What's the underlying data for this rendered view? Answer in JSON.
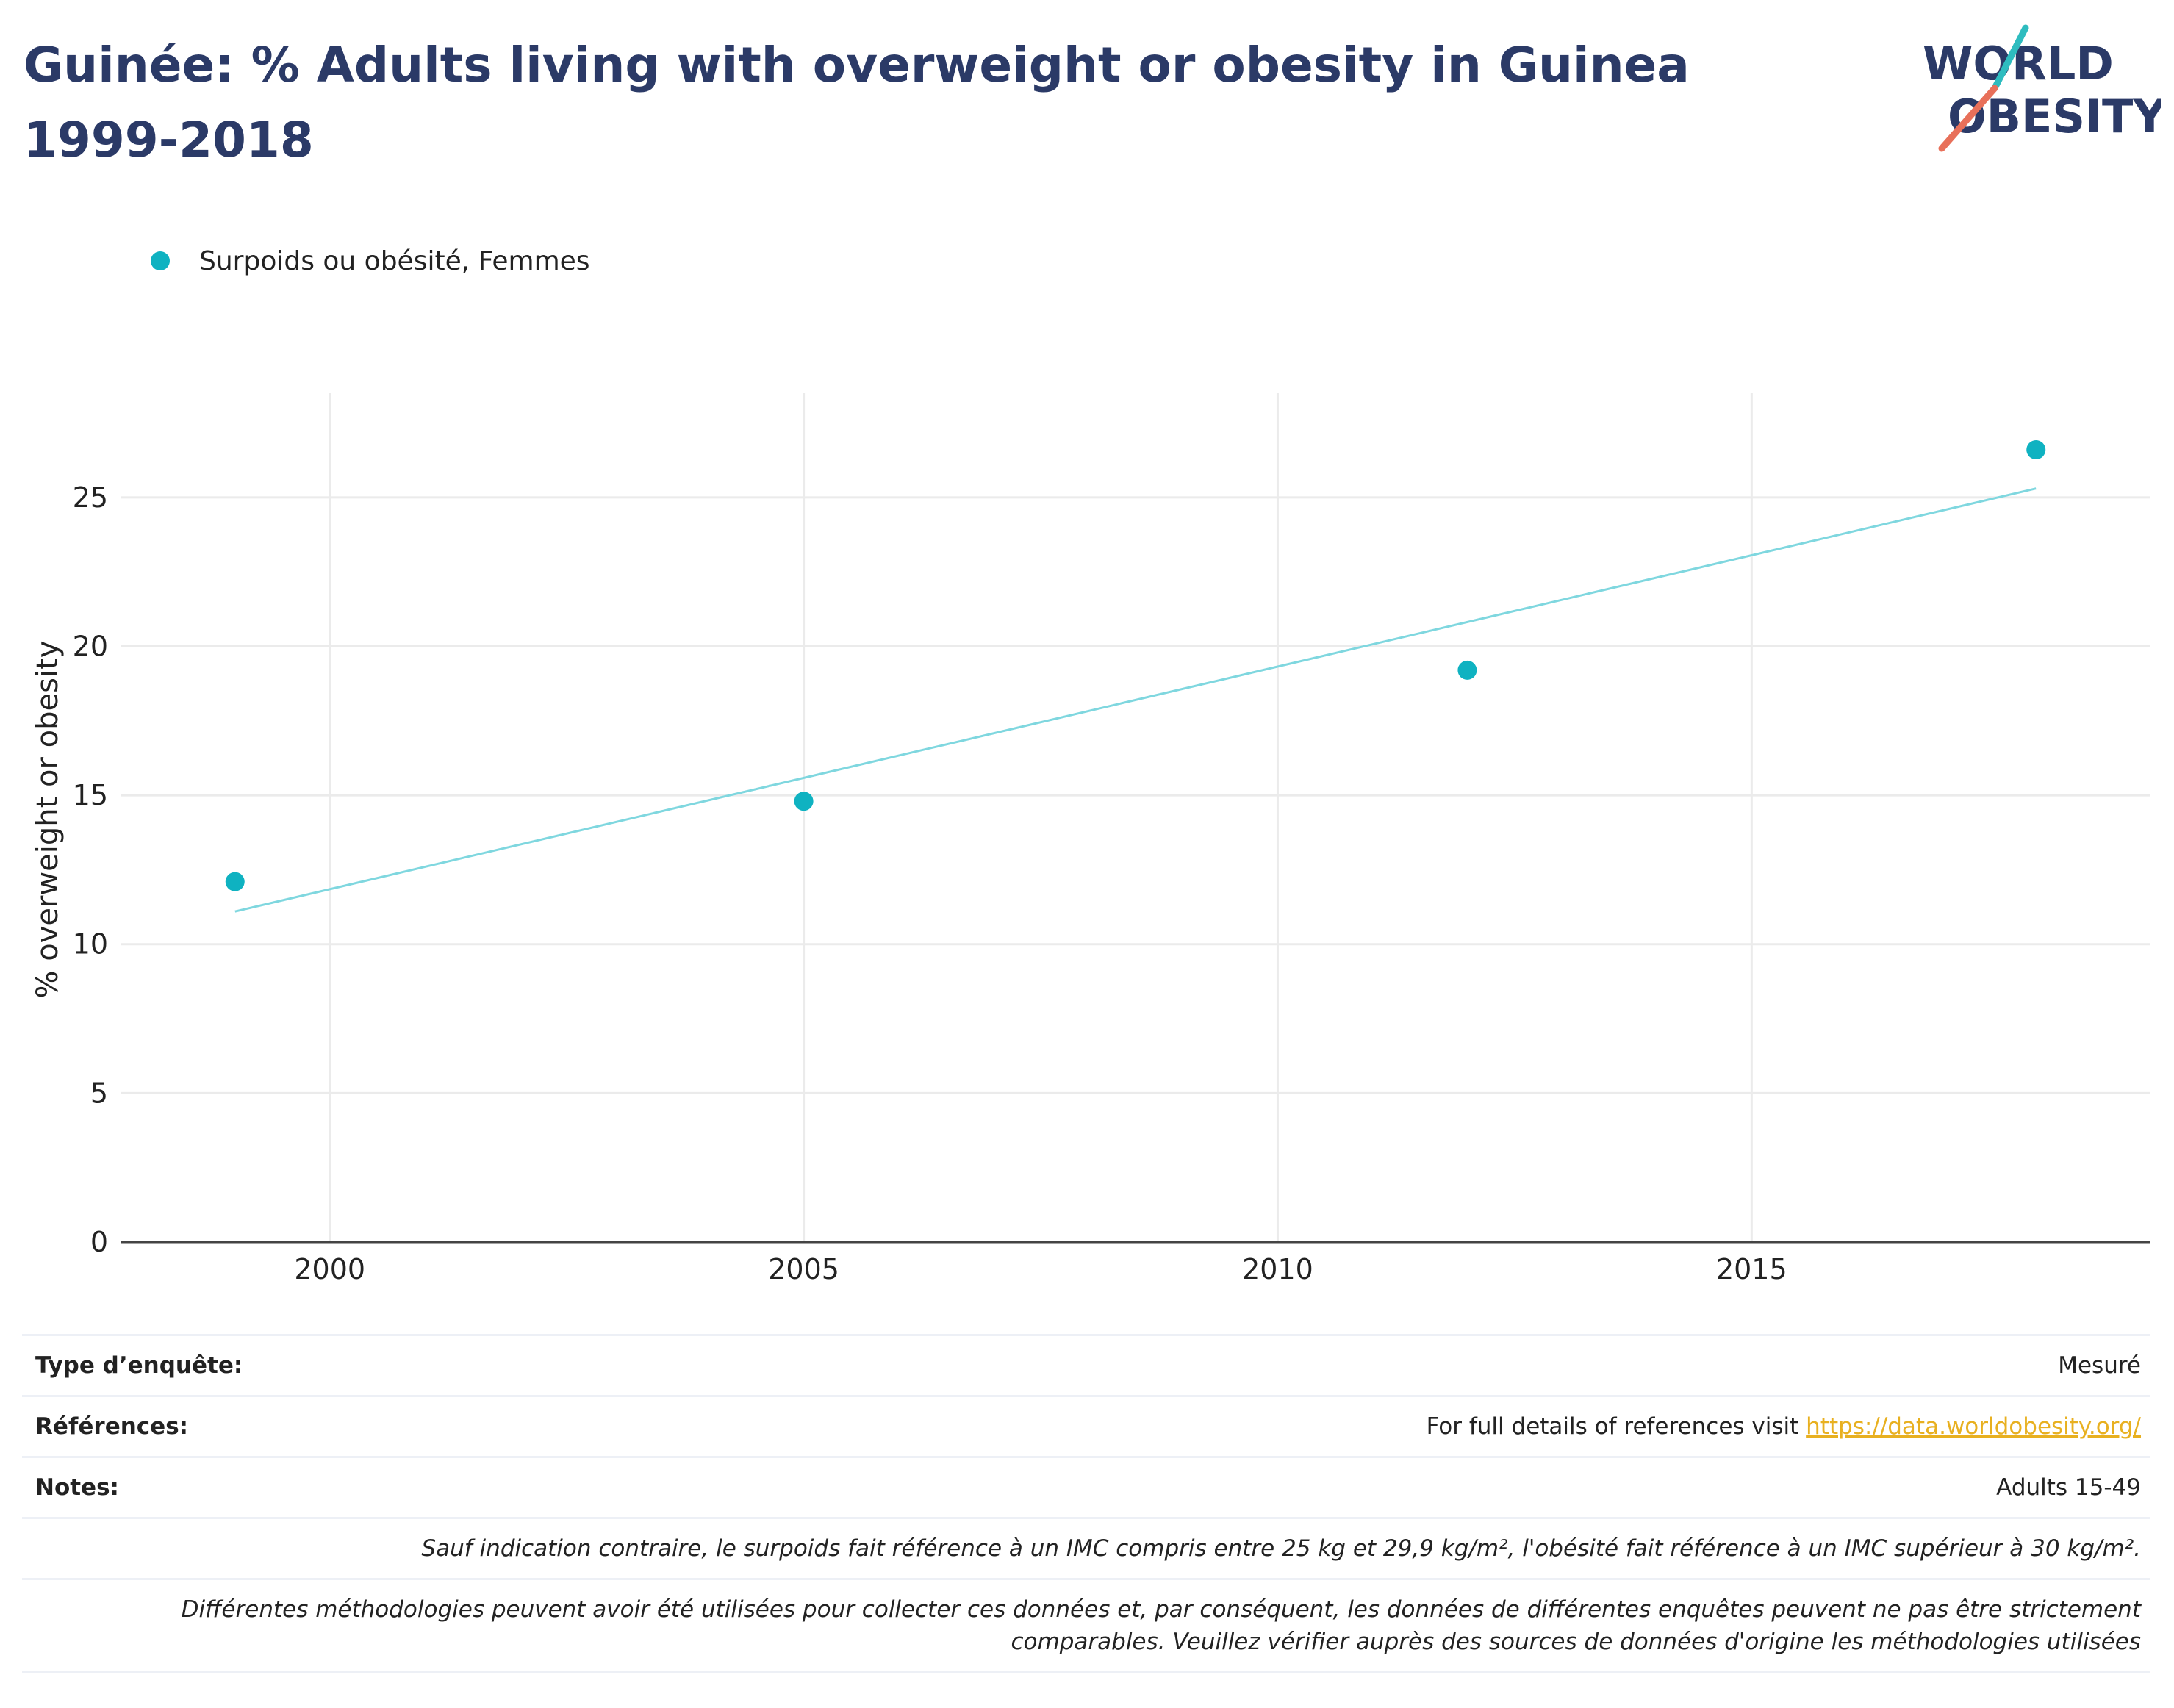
{
  "title": "Guinée: % Adults living with overweight or obesity in Guinea 1999-2018",
  "logo": {
    "line1": "WORLD",
    "line2": "OBESITY"
  },
  "colors": {
    "series": "#0fb2c1",
    "trend": "#7fd7df",
    "title": "#2b3a67",
    "link": "#e8b020"
  },
  "chart_data": {
    "type": "scatter",
    "series": [
      {
        "name": "Surpoids ou obésité, Femmes",
        "x": [
          1999,
          2005,
          2012,
          2018
        ],
        "y": [
          12.1,
          14.8,
          19.2,
          26.6
        ]
      }
    ],
    "trendline": {
      "x": [
        1999,
        2018
      ],
      "y": [
        11.1,
        25.3
      ]
    },
    "ylabel": "% overweight or obesity",
    "xlabel": "",
    "xlim": [
      1997.8,
      2019.2
    ],
    "ylim": [
      0,
      28.5
    ],
    "xticks": [
      2000,
      2005,
      2010,
      2015
    ],
    "yticks": [
      0,
      5,
      10,
      15,
      20,
      25
    ],
    "grid": true,
    "legend_position": "top-left"
  },
  "info": {
    "survey_label": "Type d’enquête:",
    "survey_value": "Mesuré",
    "refs_label": "Références:",
    "refs_text": "For full details of references visit ",
    "refs_link": "https://data.worldobesity.org/",
    "notes_label": "Notes:",
    "notes_value": "Adults 15-49",
    "note1": "Sauf indication contraire, le surpoids fait référence à un IMC compris entre 25 kg et 29,9 kg/m², l'obésité fait référence à un IMC supérieur à 30 kg/m².",
    "note2_line1": "Différentes méthodologies peuvent avoir été utilisées pour collecter ces données et, par conséquent, les données de différentes enquêtes peuvent ne pas être strictement",
    "note2_line2": "comparables. Veuillez vérifier auprès des sources de données d'origine les méthodologies utilisées"
  }
}
